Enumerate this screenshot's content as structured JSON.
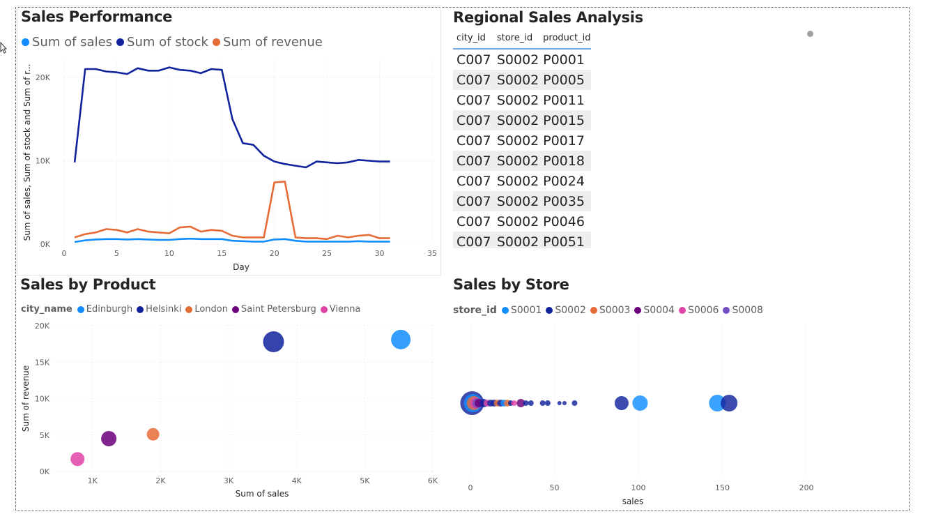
{
  "colors": {
    "sales": "#118DFF",
    "stock": "#12239E",
    "revenue": "#E66C37",
    "edinburgh": "#118DFF",
    "helsinki": "#12239E",
    "london": "#E66C37",
    "saint_petersburg": "#6B007B",
    "vienna": "#E044A7",
    "S0001": "#118DFF",
    "S0002": "#12239E",
    "S0003": "#E66C37",
    "S0004": "#6B007B",
    "S0006": "#E044A7",
    "S0008": "#744EC2"
  },
  "sales_performance": {
    "title": "Sales Performance",
    "legend": [
      "Sum of sales",
      "Sum of stock",
      "Sum of revenue"
    ]
  },
  "regional": {
    "title": "Regional Sales Analysis",
    "columns": [
      "city_id",
      "store_id",
      "product_id"
    ],
    "rows": [
      [
        "C007",
        "S0002",
        "P0001"
      ],
      [
        "C007",
        "S0002",
        "P0005"
      ],
      [
        "C007",
        "S0002",
        "P0011"
      ],
      [
        "C007",
        "S0002",
        "P0015"
      ],
      [
        "C007",
        "S0002",
        "P0017"
      ],
      [
        "C007",
        "S0002",
        "P0018"
      ],
      [
        "C007",
        "S0002",
        "P0024"
      ],
      [
        "C007",
        "S0002",
        "P0035"
      ],
      [
        "C007",
        "S0002",
        "P0046"
      ],
      [
        "C007",
        "S0002",
        "P0051"
      ]
    ]
  },
  "sales_by_product": {
    "title": "Sales by Product",
    "legend_title": "city_name",
    "legend": [
      "Edinburgh",
      "Helsinki",
      "London",
      "Saint Petersburg",
      "Vienna"
    ]
  },
  "sales_by_store": {
    "title": "Sales by Store",
    "legend_title": "store_id",
    "legend": [
      "S0001",
      "S0002",
      "S0003",
      "S0004",
      "S0006",
      "S0008"
    ]
  },
  "chart_data": [
    {
      "type": "line",
      "title": "Sales Performance",
      "xlabel": "Day",
      "ylabel": "Sum of sales, Sum of stock and Sum of r...",
      "xlim": [
        0,
        35
      ],
      "ylim": [
        0,
        22000
      ],
      "xticks": [
        "0",
        "5",
        "10",
        "15",
        "20",
        "25",
        "30",
        "35"
      ],
      "yticks": [
        "0K",
        "10K",
        "20K"
      ],
      "x": [
        1,
        2,
        3,
        4,
        5,
        6,
        7,
        8,
        9,
        10,
        11,
        12,
        13,
        14,
        15,
        16,
        17,
        18,
        19,
        20,
        21,
        22,
        23,
        24,
        25,
        26,
        27,
        28,
        29,
        30,
        31
      ],
      "series": [
        {
          "name": "Sum of sales",
          "values": [
            250,
            450,
            550,
            600,
            600,
            550,
            600,
            550,
            500,
            500,
            600,
            650,
            600,
            600,
            600,
            400,
            350,
            300,
            300,
            550,
            600,
            400,
            300,
            300,
            300,
            300,
            300,
            350,
            300,
            300,
            300
          ]
        },
        {
          "name": "Sum of stock",
          "values": [
            9800,
            21000,
            21000,
            20700,
            20600,
            20400,
            21100,
            20800,
            20800,
            21200,
            20900,
            20800,
            20500,
            21000,
            20900,
            15000,
            12100,
            11900,
            10600,
            9900,
            9600,
            9400,
            9200,
            9900,
            9800,
            9700,
            9800,
            10100,
            10000,
            9900,
            9900
          ]
        },
        {
          "name": "Sum of revenue",
          "values": [
            800,
            1200,
            1400,
            1800,
            1700,
            1400,
            1800,
            1500,
            1400,
            1300,
            2000,
            2100,
            1500,
            1700,
            1600,
            1000,
            800,
            800,
            800,
            7400,
            7500,
            800,
            700,
            700,
            600,
            1000,
            800,
            1000,
            1100,
            700,
            700
          ]
        }
      ]
    },
    {
      "type": "scatter",
      "title": "Sales by Product",
      "xlabel": "Sum of sales",
      "ylabel": "Sum of revenue",
      "xlim": [
        450,
        6000
      ],
      "ylim": [
        0,
        20000
      ],
      "xticks": [
        "1K",
        "2K",
        "3K",
        "4K",
        "5K",
        "6K"
      ],
      "yticks": [
        "0K",
        "5K",
        "10K",
        "15K",
        "20K"
      ],
      "points": [
        {
          "series": "Edinburgh",
          "x": 5530,
          "y": 18100,
          "size": 14
        },
        {
          "series": "Helsinki",
          "x": 3660,
          "y": 17800,
          "size": 15
        },
        {
          "series": "London",
          "x": 1890,
          "y": 5100,
          "size": 9
        },
        {
          "series": "Saint Petersburg",
          "x": 1240,
          "y": 4500,
          "size": 11
        },
        {
          "series": "Vienna",
          "x": 780,
          "y": 1700,
          "size": 10
        }
      ]
    },
    {
      "type": "scatter",
      "title": "Sales by Store",
      "xlabel": "sales",
      "ylabel": "",
      "xlim": [
        0,
        200
      ],
      "xticks": [
        "0",
        "50",
        "100",
        "150",
        "200"
      ],
      "points": [
        {
          "series": "S0002",
          "x": 1,
          "size": 17
        },
        {
          "series": "S0001",
          "x": 1.5,
          "size": 13
        },
        {
          "series": "S0003",
          "x": 2,
          "size": 10
        },
        {
          "series": "S0006",
          "x": 3,
          "size": 8
        },
        {
          "series": "S0008",
          "x": 4,
          "size": 7
        },
        {
          "series": "S0004",
          "x": 5,
          "size": 6
        },
        {
          "series": "S0002",
          "x": 8,
          "size": 6
        },
        {
          "series": "S0006",
          "x": 10,
          "size": 5
        },
        {
          "series": "S0002",
          "x": 12,
          "size": 5
        },
        {
          "series": "S0002",
          "x": 14,
          "size": 5
        },
        {
          "series": "S0003",
          "x": 16,
          "size": 5
        },
        {
          "series": "S0002",
          "x": 18,
          "size": 5
        },
        {
          "series": "S0001",
          "x": 20,
          "size": 5
        },
        {
          "series": "S0003",
          "x": 22,
          "size": 5
        },
        {
          "series": "S0002",
          "x": 24,
          "size": 4
        },
        {
          "series": "S0006",
          "x": 26,
          "size": 4
        },
        {
          "series": "S0004",
          "x": 30,
          "size": 6
        },
        {
          "series": "S0002",
          "x": 33,
          "size": 4
        },
        {
          "series": "S0002",
          "x": 36,
          "size": 4
        },
        {
          "series": "S0002",
          "x": 43,
          "size": 4
        },
        {
          "series": "S0002",
          "x": 46,
          "size": 4
        },
        {
          "series": "S0002",
          "x": 53,
          "size": 3
        },
        {
          "series": "S0002",
          "x": 56,
          "size": 3
        },
        {
          "series": "S0002",
          "x": 62,
          "size": 4
        },
        {
          "series": "S0002",
          "x": 90,
          "size": 10
        },
        {
          "series": "S0001",
          "x": 101,
          "size": 11
        },
        {
          "series": "S0001",
          "x": 147,
          "size": 12
        },
        {
          "series": "S0002",
          "x": 154,
          "size": 12
        }
      ]
    }
  ]
}
